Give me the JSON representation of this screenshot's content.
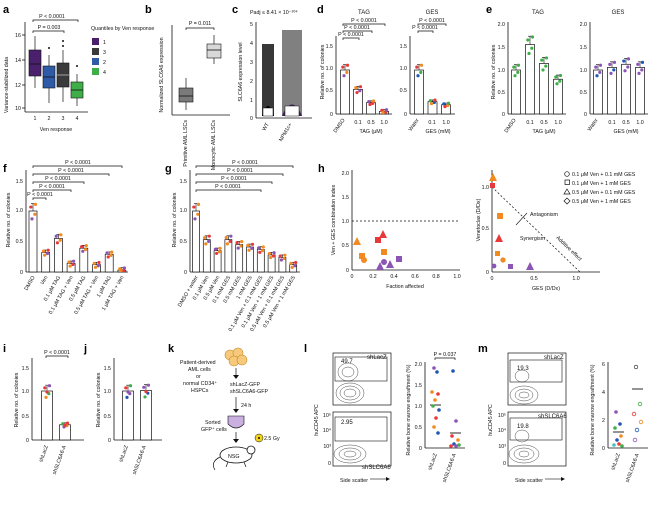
{
  "colors": {
    "red": "#e8383a",
    "orange": "#f28a22",
    "purple": "#8c55b5",
    "blue": "#1f57b3",
    "green": "#3fae49",
    "dark_purple": "#4a1f6b",
    "gray": "#8c8c8c",
    "teal": "#4ac0c0"
  },
  "panel_labels": [
    "a",
    "b",
    "c",
    "d",
    "e",
    "f",
    "g",
    "h",
    "i",
    "j",
    "k",
    "l",
    "m"
  ],
  "panel_a": {
    "ylabel": "Variance-stabilized data",
    "xlabel": "Ven response",
    "yticks": [
      "16",
      "14",
      "12",
      "10"
    ],
    "xticks": [
      "1",
      "2",
      "3",
      "4"
    ],
    "pvals": [
      "P < 0.0001",
      "P = 0.003"
    ],
    "legend_title": "Quantiles by Ven response",
    "legend": [
      {
        "label": "1",
        "color": "#4a1f6b"
      },
      {
        "label": "3",
        "color": "#3a3a3a"
      },
      {
        "label": "2",
        "color": "#2e5aa8"
      },
      {
        "label": "4",
        "color": "#3fae49"
      }
    ]
  },
  "panel_b": {
    "ylabel": "Normalized SLC6A6 expression",
    "pval": "P = 0.011",
    "groups": [
      "Primitive AML LSCs",
      "Monocytic AML LSCs"
    ]
  },
  "panel_c": {
    "title": "Padj ≤ 8.41 × 10⁻¹⁰⁴",
    "ylabel": "SLC6A6 expression level",
    "yticks": [
      "5",
      "4",
      "3",
      "2",
      "1",
      "0"
    ],
    "groups": [
      "WT",
      "NPM1c+"
    ]
  },
  "panel_d": {
    "tag": {
      "title": "TAG",
      "pvals": [
        "P < 0.0001",
        "P < 0.0001",
        "P < 0.0001"
      ],
      "xticks": [
        "DMSO",
        "0.1",
        "0.5",
        "1.0"
      ],
      "xlabel": "TAG (μM)",
      "values": [
        1.0,
        0.56,
        0.26,
        0.06
      ]
    },
    "ges": {
      "title": "GES",
      "pvals": [
        "P < 0.0001",
        "P < 0.0001"
      ],
      "xticks": [
        "Water",
        "0.1",
        "1.0"
      ],
      "xlabel": "GES (mM)",
      "values": [
        1.0,
        0.28,
        0.21
      ]
    },
    "ylabel": "Relative no. of colonies",
    "yticks": [
      "1.5",
      "1.0",
      "0.5",
      "0"
    ]
  },
  "panel_e": {
    "tag": {
      "title": "TAG",
      "xticks": [
        "DMSO",
        "0.1",
        "0.5",
        "1.0"
      ],
      "xlabel": "TAG (μM)",
      "values": [
        1.0,
        1.58,
        1.15,
        0.79
      ]
    },
    "ges": {
      "title": "GES",
      "xticks": [
        "Water",
        "0.1",
        "0.5",
        "1.0"
      ],
      "xlabel": "GES (mM)",
      "values": [
        1.0,
        1.06,
        1.13,
        1.06
      ]
    },
    "ylabel": "Relative no. of colonies",
    "yticks": [
      "2.0",
      "1.5",
      "1.0",
      "0.5",
      "0"
    ]
  },
  "panel_f": {
    "ylabel": "Relative no. of colonies",
    "yticks": [
      "1.5",
      "1.0",
      "0.5",
      "0"
    ],
    "pvals": [
      "P < 0.0001",
      "P < 0.0001",
      "P < 0.0001",
      "P < 0.0001",
      "P < 0.0001"
    ],
    "categories": [
      "DMSO",
      "Ven",
      "0.1 μM TAG",
      "0.1 μM TAG + Ven",
      "0.5 μM TAG",
      "0.5 μM TAG + Ven",
      "1 μM TAG",
      "1 μM TAG + Ven"
    ],
    "values": [
      1.0,
      0.32,
      0.55,
      0.14,
      0.39,
      0.12,
      0.29,
      0.03
    ]
  },
  "panel_g": {
    "ylabel": "Relative no. of colonies",
    "yticks": [
      "1.5",
      "1.0",
      "0.5",
      "0"
    ],
    "pvals": [
      "P < 0.0001",
      "P < 0.0001",
      "P < 0.0001",
      "P < 0.0001"
    ],
    "categories": [
      "DMSO + water",
      "0.1 μM Ven",
      "0.5 μM Ven",
      "0.1 mM GES",
      "0.5 mM GES",
      "1 mM GES",
      "0.1 μM Ven + 0.1 mM GES",
      "0.1 μM Ven + 1 mM GES",
      "0.5 μM Ven + 0.1 mM GES",
      "0.5 μM Ven + 1 mM GES"
    ],
    "values": [
      1.0,
      0.53,
      0.35,
      0.53,
      0.45,
      0.41,
      0.37,
      0.28,
      0.24,
      0.12
    ]
  },
  "panel_h": {
    "left": {
      "ylabel": "Ven + GES combination index",
      "xlabel": "Faction affected",
      "yticks": [
        "2.0",
        "1.5",
        "1.0",
        "0.5",
        "0"
      ],
      "xticks": [
        "0",
        "0.2",
        "0.4",
        "0.6",
        "0.8",
        "1.0"
      ]
    },
    "right": {
      "ylabel": "Venetoclax (D/Dx)",
      "xlabel": "GES (D/Dx)",
      "yticks": [
        "1.0",
        "0.5",
        "0"
      ],
      "xticks": [
        "0",
        "0.5",
        "1.0"
      ],
      "annotations": [
        "Antagonism",
        "Synergism",
        "Additive effect"
      ]
    },
    "legend": [
      {
        "label": "0.1 μM Ven + 0.1 mM GES",
        "shape": "circle"
      },
      {
        "label": "0.1 μM Ven + 1 mM GES",
        "shape": "square"
      },
      {
        "label": "0.5 μM Ven + 0.1 mM GES",
        "shape": "triangle"
      },
      {
        "label": "0.5 μM Ven + 1 mM GES",
        "shape": "diamond"
      }
    ]
  },
  "panel_i": {
    "ylabel": "Relative no. of colonies",
    "yticks": [
      "1.5",
      "1.0",
      "0.5",
      "0"
    ],
    "pval": "P < 0.0001",
    "categories": [
      "shLacZ",
      "shSLC6A6-A"
    ],
    "values": [
      1.0,
      0.31
    ]
  },
  "panel_j": {
    "ylabel": "Relative no. of colonies",
    "yticks": [
      "1.5",
      "1.0",
      "0.5",
      "0"
    ],
    "categories": [
      "shLacZ",
      "shSLC6A6-A"
    ],
    "values": [
      1.0,
      1.01
    ]
  },
  "panel_k": {
    "source": [
      "Patient-derived",
      "AML cells",
      "or",
      "normal CD34⁺",
      "HSPCs"
    ],
    "vectors": [
      "shLacZ-GFP",
      "shSLC6A6-GFP"
    ],
    "time": "24 h",
    "sorted": [
      "Sorted",
      "GFP⁺ cells"
    ],
    "mouse": "NSG",
    "dose": "2.5 Gy"
  },
  "panel_l": {
    "flow_ylabel": "huCD45 APC",
    "flow_xlabel": "Side scatter",
    "flow_ticks": [
      "10⁵",
      "10⁴",
      "10³",
      "0"
    ],
    "top": {
      "label": "shLacZ",
      "pct": "49.7"
    },
    "bottom": {
      "label": "shSLC6A6",
      "pct": "2.95"
    },
    "scatter_ylabel": "Relative bone marrow engraftment (%)",
    "pval": "P = 0.037",
    "yticks": [
      "2.0",
      "1.5",
      "1.0",
      "0.5",
      "0"
    ],
    "categories": [
      "shLacZ",
      "shSLC6A6-A"
    ]
  },
  "panel_m": {
    "flow_ylabel": "huCD45 APC",
    "flow_xlabel": "Side scatter",
    "flow_ticks": [
      "10⁵",
      "10⁴",
      "10³",
      "0"
    ],
    "top": {
      "label": "shLacZ",
      "pct": "19.3"
    },
    "bottom": {
      "label": "shSLC6A6",
      "pct": "19.8"
    },
    "scatter_ylabel": "Relative bone marrow engraftment (%)",
    "yticks": [
      "6",
      "4",
      "2",
      "0"
    ],
    "categories": [
      "shLacZ",
      "shSLC6A6-A"
    ]
  }
}
